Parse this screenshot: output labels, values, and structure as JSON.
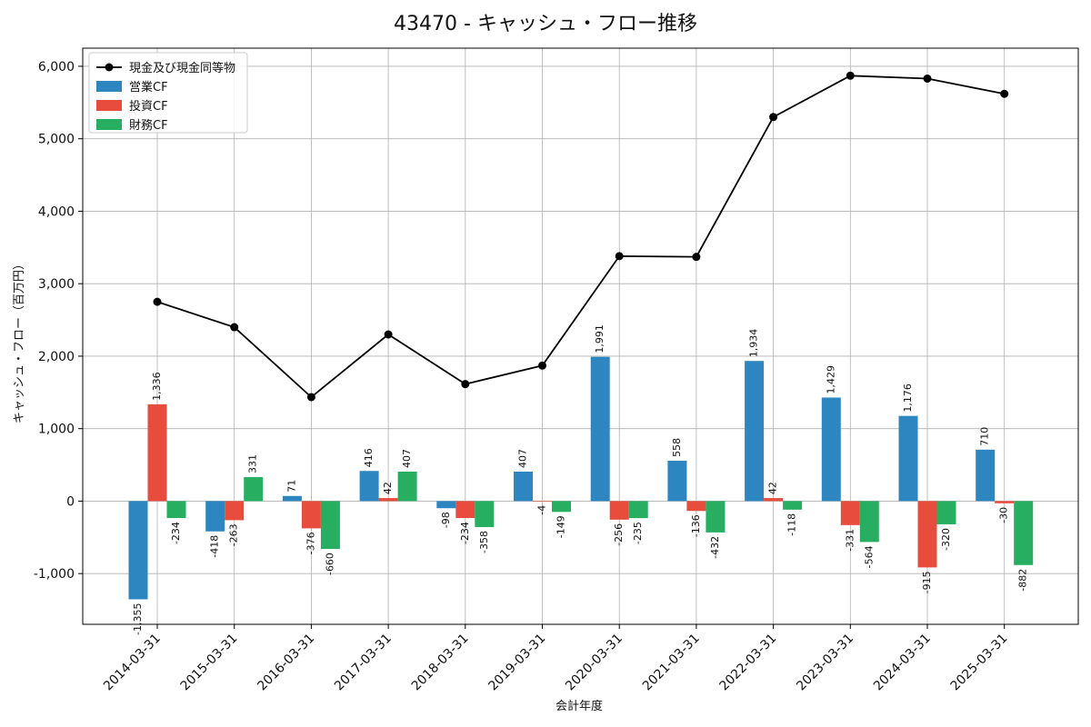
{
  "chart_data": {
    "type": "bar",
    "title": "43470 - キャッシュ・フロー推移",
    "xlabel": "会計年度",
    "ylabel": "キャッシュ・フロー（百万円）",
    "ylim": [
      -1700,
      6250
    ],
    "yticks": [
      -1000,
      0,
      1000,
      2000,
      3000,
      4000,
      5000,
      6000
    ],
    "ytick_labels": [
      "-1,000",
      "0",
      "1,000",
      "2,000",
      "3,000",
      "4,000",
      "5,000",
      "6,000"
    ],
    "categories": [
      "2014-03-31",
      "2015-03-31",
      "2016-03-31",
      "2017-03-31",
      "2018-03-31",
      "2019-03-31",
      "2020-03-31",
      "2021-03-31",
      "2022-03-31",
      "2023-03-31",
      "2024-03-31",
      "2025-03-31"
    ],
    "grid": true,
    "legend_position": "top-left",
    "series": [
      {
        "name": "営業CF",
        "kind": "bar",
        "color": "#2e86c1",
        "values": [
          -1355,
          -418,
          71,
          416,
          -98,
          407,
          1991,
          558,
          1934,
          1429,
          1176,
          710
        ],
        "labels": [
          "-1,355",
          "-418",
          "71",
          "416",
          "-98",
          "407",
          "1,991",
          "558",
          "1,934",
          "1,429",
          "1,176",
          "710"
        ]
      },
      {
        "name": "投資CF",
        "kind": "bar",
        "color": "#e74c3c",
        "values": [
          1336,
          -263,
          -376,
          42,
          -234,
          -4,
          -256,
          -136,
          42,
          -331,
          -915,
          -30
        ],
        "labels": [
          "1,336",
          "-263",
          "-376",
          "42",
          "-234",
          "-4",
          "-256",
          "-136",
          "42",
          "-331",
          "-915",
          "-30"
        ]
      },
      {
        "name": "財務CF",
        "kind": "bar",
        "color": "#27ae60",
        "values": [
          -234,
          331,
          -660,
          407,
          -358,
          -149,
          -235,
          -432,
          -118,
          -564,
          -320,
          -882
        ],
        "labels": [
          "-234",
          "331",
          "-660",
          "407",
          "-358",
          "-149",
          "-235",
          "-432",
          "-118",
          "-564",
          "-320",
          "-882"
        ]
      },
      {
        "name": "現金及び現金同等物",
        "kind": "line",
        "color": "#000000",
        "values": [
          2750,
          2400,
          1435,
          2300,
          1615,
          1870,
          3380,
          3370,
          5300,
          5870,
          5830,
          5620
        ]
      }
    ]
  }
}
